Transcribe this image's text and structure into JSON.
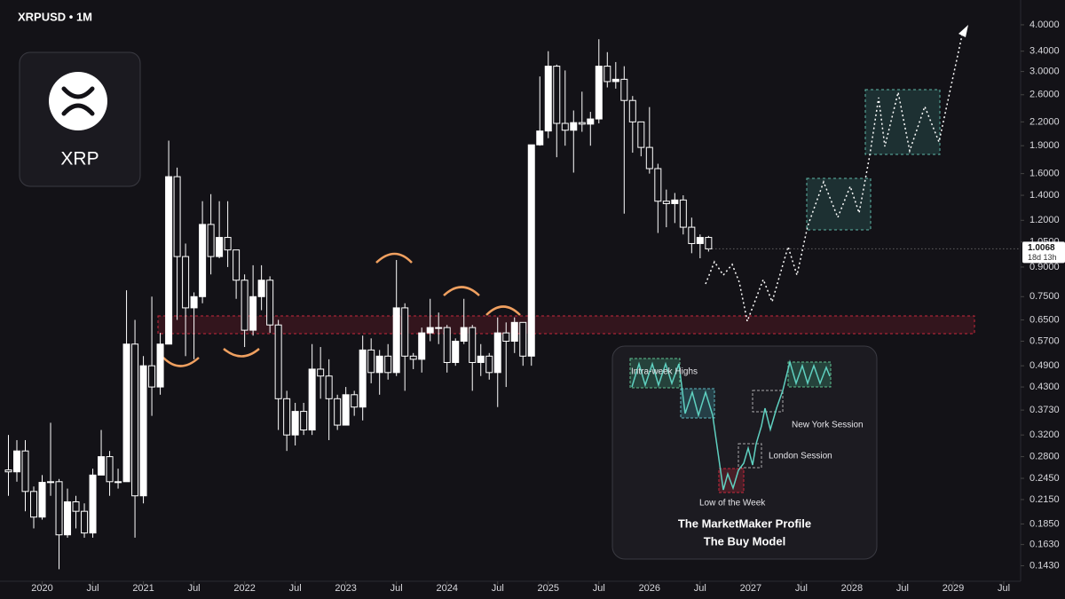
{
  "chart_data": {
    "type": "candlestick",
    "title": "XRPUSD • 1M",
    "logo_label": "XRP",
    "countdown": "18d 13h",
    "log_scale": true,
    "up_color": "#ffffff",
    "down_color": "#131217",
    "x": [
      "2019-09",
      "2019-10",
      "2019-11",
      "2019-12",
      "2020-01",
      "2020-02",
      "2020-03",
      "2020-04",
      "2020-05",
      "2020-06",
      "2020-07",
      "2020-08",
      "2020-09",
      "2020-10",
      "2020-11",
      "2020-12",
      "2021-01",
      "2021-02",
      "2021-03",
      "2021-04",
      "2021-05",
      "2021-06",
      "2021-07",
      "2021-08",
      "2021-09",
      "2021-10",
      "2021-11",
      "2021-12",
      "2022-01",
      "2022-02",
      "2022-03",
      "2022-04",
      "2022-05",
      "2022-06",
      "2022-07",
      "2022-08",
      "2022-09",
      "2022-10",
      "2022-11",
      "2022-12",
      "2023-01",
      "2023-02",
      "2023-03",
      "2023-04",
      "2023-05",
      "2023-06",
      "2023-07",
      "2023-08",
      "2023-09",
      "2023-10",
      "2023-11",
      "2023-12",
      "2024-01",
      "2024-02",
      "2024-03",
      "2024-04",
      "2024-05",
      "2024-06",
      "2024-07",
      "2024-08",
      "2024-09",
      "2024-10",
      "2024-11",
      "2024-12",
      "2025-01",
      "2025-02",
      "2025-03",
      "2025-04",
      "2025-05",
      "2025-06",
      "2025-07",
      "2025-08",
      "2025-09",
      "2025-10",
      "2025-11",
      "2025-12",
      "2026-01",
      "2026-02",
      "2026-03",
      "2026-04",
      "2026-05",
      "2026-06",
      "2026-07",
      "2026-08"
    ],
    "open": [
      0.258,
      0.255,
      0.29,
      0.226,
      0.193,
      0.239,
      0.24,
      0.173,
      0.212,
      0.2,
      0.175,
      0.25,
      0.28,
      0.24,
      0.24,
      0.56,
      0.22,
      0.49,
      0.43,
      0.56,
      1.57,
      0.96,
      0.7,
      0.75,
      1.17,
      0.96,
      1.08,
      1.0,
      0.83,
      0.61,
      0.75,
      0.83,
      0.63,
      0.4,
      0.32,
      0.37,
      0.33,
      0.48,
      0.46,
      0.4,
      0.34,
      0.41,
      0.38,
      0.54,
      0.47,
      0.52,
      0.47,
      0.7,
      0.52,
      0.51,
      0.6,
      0.62,
      0.62,
      0.5,
      0.57,
      0.62,
      0.5,
      0.52,
      0.47,
      0.6,
      0.57,
      0.64,
      0.52,
      1.91,
      2.08,
      3.1,
      2.18,
      2.09,
      2.19,
      2.17,
      2.24,
      3.1,
      2.82,
      2.86,
      2.51,
      2.2,
      1.88,
      1.65,
      1.35,
      1.33,
      1.36,
      1.15,
      1.04,
      1.08
    ],
    "high": [
      0.32,
      0.31,
      0.31,
      0.233,
      0.25,
      0.345,
      0.244,
      0.23,
      0.22,
      0.21,
      0.26,
      0.33,
      0.29,
      0.26,
      0.78,
      0.65,
      0.52,
      0.75,
      0.6,
      1.96,
      1.66,
      1.04,
      0.77,
      1.35,
      1.41,
      1.35,
      1.35,
      1.0,
      0.86,
      0.91,
      0.91,
      0.85,
      0.65,
      0.42,
      0.39,
      0.39,
      0.56,
      0.55,
      0.51,
      0.41,
      0.43,
      0.42,
      0.59,
      0.58,
      0.54,
      0.56,
      0.94,
      0.72,
      0.53,
      0.62,
      0.74,
      0.68,
      0.63,
      0.58,
      0.74,
      0.63,
      0.56,
      0.53,
      0.66,
      0.64,
      0.66,
      0.64,
      1.91,
      2.91,
      3.4,
      3.13,
      3.02,
      2.36,
      2.65,
      2.34,
      3.66,
      3.38,
      3.18,
      3.1,
      2.58,
      2.2,
      2.41,
      1.7,
      1.45,
      1.42,
      1.4,
      1.22,
      1.1,
      1.09
    ],
    "low": [
      0.22,
      0.24,
      0.2,
      0.18,
      0.19,
      0.22,
      0.14,
      0.17,
      0.18,
      0.17,
      0.17,
      0.25,
      0.22,
      0.23,
      0.24,
      0.17,
      0.21,
      0.36,
      0.41,
      0.56,
      0.65,
      0.52,
      0.51,
      0.72,
      0.86,
      0.95,
      0.9,
      0.74,
      0.55,
      0.59,
      0.69,
      0.6,
      0.33,
      0.29,
      0.3,
      0.32,
      0.32,
      0.4,
      0.31,
      0.33,
      0.34,
      0.36,
      0.35,
      0.44,
      0.41,
      0.45,
      0.46,
      0.42,
      0.48,
      0.47,
      0.57,
      0.56,
      0.47,
      0.49,
      0.56,
      0.42,
      0.46,
      0.45,
      0.38,
      0.43,
      0.53,
      0.49,
      0.49,
      1.9,
      1.99,
      1.77,
      1.9,
      1.61,
      2.07,
      1.9,
      2.18,
      2.72,
      2.7,
      1.25,
      1.82,
      1.78,
      1.6,
      1.11,
      1.15,
      1.18,
      1.1,
      0.98,
      0.95,
      0.99
    ],
    "close": [
      0.255,
      0.29,
      0.226,
      0.193,
      0.239,
      0.24,
      0.173,
      0.212,
      0.2,
      0.175,
      0.25,
      0.28,
      0.24,
      0.24,
      0.56,
      0.22,
      0.49,
      0.43,
      0.56,
      1.57,
      0.96,
      0.7,
      0.75,
      1.17,
      0.96,
      1.08,
      1.0,
      0.83,
      0.61,
      0.75,
      0.83,
      0.63,
      0.4,
      0.32,
      0.37,
      0.33,
      0.48,
      0.46,
      0.4,
      0.34,
      0.41,
      0.38,
      0.54,
      0.47,
      0.52,
      0.47,
      0.7,
      0.52,
      0.51,
      0.6,
      0.62,
      0.62,
      0.5,
      0.57,
      0.62,
      0.5,
      0.52,
      0.47,
      0.6,
      0.57,
      0.64,
      0.52,
      1.91,
      2.08,
      3.1,
      2.18,
      2.09,
      2.19,
      2.17,
      2.24,
      3.1,
      2.82,
      2.86,
      2.51,
      2.2,
      1.88,
      1.65,
      1.35,
      1.33,
      1.36,
      1.15,
      1.04,
      1.08,
      1.0068
    ],
    "xlim": [
      "2019-08",
      "2029-09"
    ],
    "xticks": [
      {
        "value": "2020-01",
        "label": "2020"
      },
      {
        "value": "2020-07",
        "label": "Jul"
      },
      {
        "value": "2021-01",
        "label": "2021"
      },
      {
        "value": "2021-07",
        "label": "Jul"
      },
      {
        "value": "2022-01",
        "label": "2022"
      },
      {
        "value": "2022-07",
        "label": "Jul"
      },
      {
        "value": "2023-01",
        "label": "2023"
      },
      {
        "value": "2023-07",
        "label": "Jul"
      },
      {
        "value": "2024-01",
        "label": "2024"
      },
      {
        "value": "2024-07",
        "label": "Jul"
      },
      {
        "value": "2025-01",
        "label": "2025"
      },
      {
        "value": "2025-07",
        "label": "Jul"
      },
      {
        "value": "2026-01",
        "label": "2026"
      },
      {
        "value": "2026-07",
        "label": "Jul"
      },
      {
        "value": "2027-01",
        "label": "2027"
      },
      {
        "value": "2027-07",
        "label": "Jul"
      },
      {
        "value": "2028-01",
        "label": "2028"
      },
      {
        "value": "2028-07",
        "label": "Jul"
      },
      {
        "value": "2029-01",
        "label": "2029"
      },
      {
        "value": "2029-07",
        "label": "Jul"
      }
    ],
    "ylim": [
      0.13,
      4.66
    ],
    "yticks": [
      {
        "value": 4,
        "label": "4.0000"
      },
      {
        "value": 3.4,
        "label": "3.4000"
      },
      {
        "value": 3,
        "label": "3.0000"
      },
      {
        "value": 2.6,
        "label": "2.6000"
      },
      {
        "value": 2.2,
        "label": "2.2000"
      },
      {
        "value": 1.9,
        "label": "1.9000"
      },
      {
        "value": 1.6,
        "label": "1.6000"
      },
      {
        "value": 1.4,
        "label": "1.4000"
      },
      {
        "value": 1.2,
        "label": "1.2000"
      },
      {
        "value": 1.05,
        "label": "1.0500"
      },
      {
        "value": 0.9,
        "label": "0.9000"
      },
      {
        "value": 0.75,
        "label": "0.7500"
      },
      {
        "value": 0.65,
        "label": "0.6500"
      },
      {
        "value": 0.57,
        "label": "0.5700"
      },
      {
        "value": 0.49,
        "label": "0.4900"
      },
      {
        "value": 0.43,
        "label": "0.4300"
      },
      {
        "value": 0.373,
        "label": "0.3730"
      },
      {
        "value": 0.32,
        "label": "0.3200"
      },
      {
        "value": 0.28,
        "label": "0.2800"
      },
      {
        "value": 0.245,
        "label": "0.2450"
      },
      {
        "value": 0.215,
        "label": "0.2150"
      },
      {
        "value": 0.185,
        "label": "0.1850"
      },
      {
        "value": 0.163,
        "label": "0.1630"
      },
      {
        "value": 0.143,
        "label": "0.1430"
      }
    ]
  },
  "inset": {
    "labels": [
      "Intra-week Highs",
      "New York Session",
      "London Session",
      "Low of the Week"
    ],
    "title": "The MarketMaker Profile",
    "subtitle": "The Buy Model"
  }
}
